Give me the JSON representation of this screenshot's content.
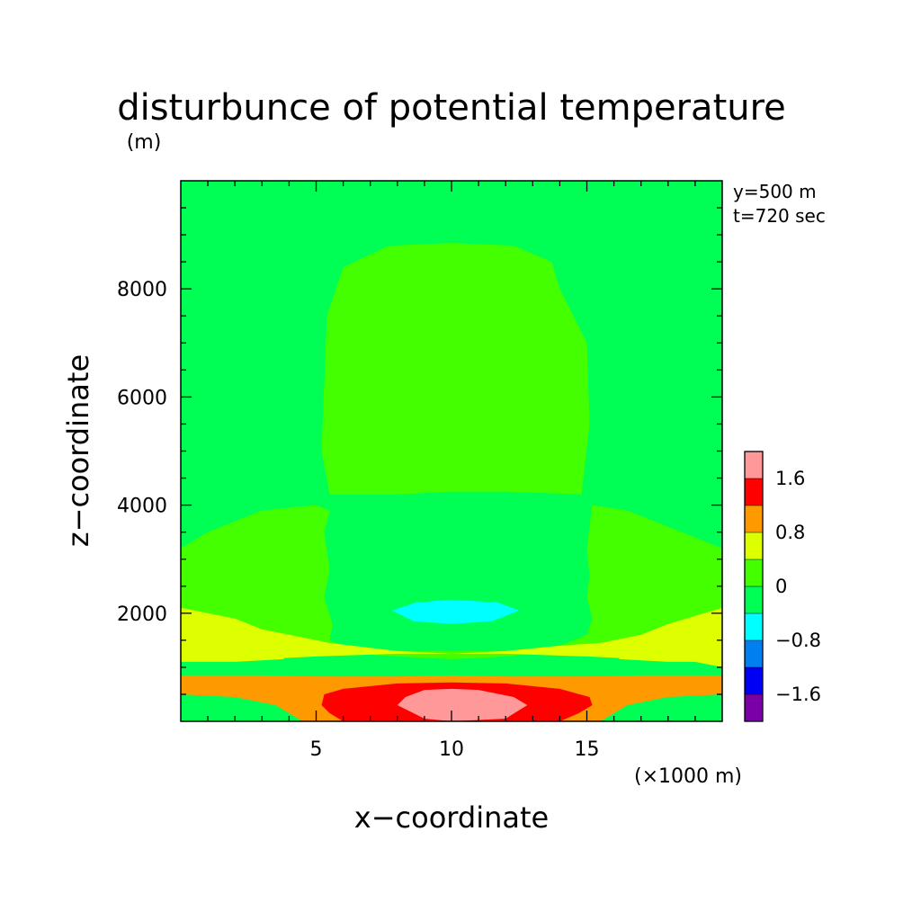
{
  "chart_data": {
    "type": "heatmap",
    "title": "disturbunce of potential temperature",
    "xlabel": "x−coordinate",
    "ylabel": "z−coordinate",
    "x_unit": "(×1000 m)",
    "y_unit": "(m)",
    "annotations": [
      "y=500 m",
      "t=720 sec"
    ],
    "xlim": [
      0,
      20
    ],
    "ylim": [
      0,
      10000
    ],
    "x_ticks": [
      5,
      10,
      15
    ],
    "y_ticks": [
      2000,
      4000,
      6000,
      8000
    ],
    "x_tick_labels": [
      "5",
      "10",
      "15"
    ],
    "y_tick_labels": [
      "2000",
      "4000",
      "6000",
      "8000"
    ],
    "colorbar": {
      "levels": [
        {
          "range": [
            -2.0,
            -1.6
          ],
          "color": "#7b00a8"
        },
        {
          "range": [
            -1.6,
            -1.2
          ],
          "color": "#0000f5"
        },
        {
          "range": [
            -1.2,
            -0.8
          ],
          "color": "#0080f0"
        },
        {
          "range": [
            -0.8,
            -0.4
          ],
          "color": "#00ffff"
        },
        {
          "range": [
            -0.4,
            0.0
          ],
          "color": "#00ff55"
        },
        {
          "range": [
            0.0,
            0.4
          ],
          "color": "#44ff00"
        },
        {
          "range": [
            0.4,
            0.8
          ],
          "color": "#ddff00"
        },
        {
          "range": [
            0.8,
            1.2
          ],
          "color": "#ff9900"
        },
        {
          "range": [
            1.2,
            1.6
          ],
          "color": "#ff0000"
        },
        {
          "range": [
            1.6,
            2.0
          ],
          "color": "#ff9999"
        }
      ],
      "tick_labels": [
        "1.6",
        "0.8",
        "0",
        "−0.8",
        "−1.6"
      ],
      "tick_values": [
        1.6,
        0.8,
        0,
        -0.8,
        -1.6
      ]
    },
    "regions": [
      {
        "level": 0.0,
        "desc": "upper dome",
        "outline": [
          [
            5.5,
            4200
          ],
          [
            5.2,
            5000
          ],
          [
            5.4,
            7500
          ],
          [
            6.0,
            8400
          ],
          [
            7.7,
            8800
          ],
          [
            10.0,
            8850
          ],
          [
            12.3,
            8800
          ],
          [
            13.7,
            8500
          ],
          [
            14.0,
            8000
          ],
          [
            15.0,
            7000
          ],
          [
            15.1,
            5500
          ],
          [
            14.8,
            4200
          ],
          [
            12,
            4250
          ],
          [
            10,
            4250
          ],
          [
            8,
            4200
          ]
        ]
      },
      {
        "level": 0.0,
        "desc": "low layer",
        "outline": [
          [
            0,
            3200
          ],
          [
            1,
            3500
          ],
          [
            3,
            3900
          ],
          [
            5,
            4000
          ],
          [
            5.5,
            3900
          ],
          [
            5.3,
            3500
          ],
          [
            5.5,
            2800
          ],
          [
            5.3,
            2300
          ],
          [
            5.6,
            1800
          ],
          [
            5.5,
            1500
          ],
          [
            6,
            1400
          ],
          [
            8,
            1300
          ],
          [
            10,
            1300
          ],
          [
            12,
            1300
          ],
          [
            14,
            1400
          ],
          [
            15,
            1600
          ],
          [
            15.2,
            1900
          ],
          [
            15,
            2300
          ],
          [
            15.1,
            2700
          ],
          [
            15,
            3200
          ],
          [
            15.2,
            4000
          ],
          [
            16.5,
            3900
          ],
          [
            18,
            3600
          ],
          [
            20,
            3200
          ],
          [
            20,
            2100
          ],
          [
            19,
            1950
          ],
          [
            18,
            1800
          ],
          [
            17,
            1600
          ],
          [
            15.5,
            1400
          ],
          [
            12,
            1200
          ],
          [
            10,
            1150
          ],
          [
            8,
            1200
          ],
          [
            5,
            1300
          ],
          [
            2,
            1500
          ],
          [
            0,
            1600
          ]
        ]
      },
      {
        "level": 0.4,
        "desc": "lower yellow band",
        "outline": [
          [
            0,
            2100
          ],
          [
            1,
            2000
          ],
          [
            2,
            1900
          ],
          [
            3,
            1700
          ],
          [
            4,
            1600
          ],
          [
            5.5,
            1450
          ],
          [
            8,
            1300
          ],
          [
            10,
            1250
          ],
          [
            12,
            1300
          ],
          [
            14,
            1400
          ],
          [
            15.5,
            1450
          ],
          [
            17,
            1600
          ],
          [
            18,
            1800
          ],
          [
            19,
            1950
          ],
          [
            20,
            2100
          ],
          [
            20,
            1000
          ],
          [
            19,
            1100
          ],
          [
            17,
            1150
          ],
          [
            15,
            1200
          ],
          [
            12,
            1250
          ],
          [
            10,
            1250
          ],
          [
            8,
            1250
          ],
          [
            5,
            1200
          ],
          [
            3,
            1150
          ],
          [
            0,
            1100
          ]
        ]
      },
      {
        "level": 0.8,
        "desc": "orange band",
        "outline": [
          [
            0,
            850
          ],
          [
            1.5,
            850
          ],
          [
            3,
            850
          ],
          [
            5,
            830
          ],
          [
            8,
            830
          ],
          [
            10,
            850
          ],
          [
            12,
            830
          ],
          [
            15,
            830
          ],
          [
            17,
            850
          ],
          [
            18.5,
            850
          ],
          [
            20,
            850
          ],
          [
            20,
            500
          ],
          [
            18,
            450
          ],
          [
            16.5,
            300
          ],
          [
            16,
            150
          ],
          [
            15.5,
            0
          ],
          [
            4.5,
            0
          ],
          [
            4,
            150
          ],
          [
            3.5,
            300
          ],
          [
            2,
            450
          ],
          [
            0,
            500
          ]
        ]
      },
      {
        "level": 1.2,
        "desc": "red core",
        "outline": [
          [
            5.3,
            500
          ],
          [
            6,
            600
          ],
          [
            8,
            700
          ],
          [
            10,
            720
          ],
          [
            12,
            700
          ],
          [
            14,
            600
          ],
          [
            15.1,
            450
          ],
          [
            15.2,
            300
          ],
          [
            14.7,
            150
          ],
          [
            14,
            0
          ],
          [
            6,
            0
          ],
          [
            5.5,
            150
          ],
          [
            5.2,
            300
          ]
        ]
      },
      {
        "level": 1.6,
        "desc": "pink peak",
        "outline": [
          [
            8,
            300
          ],
          [
            8.3,
            450
          ],
          [
            9,
            580
          ],
          [
            10,
            600
          ],
          [
            11,
            580
          ],
          [
            12.3,
            450
          ],
          [
            12.8,
            300
          ],
          [
            12,
            50
          ],
          [
            10,
            0
          ],
          [
            9,
            50
          ]
        ]
      },
      {
        "level": -0.8,
        "desc": "cyan cold pocket",
        "outline": [
          [
            7.8,
            2050
          ],
          [
            8.7,
            2200
          ],
          [
            10,
            2250
          ],
          [
            11.7,
            2200
          ],
          [
            12.5,
            2050
          ],
          [
            11.5,
            1850
          ],
          [
            10,
            1800
          ],
          [
            8.6,
            1850
          ]
        ]
      },
      {
        "level": 0.4,
        "desc": "left side tongue",
        "outline": [
          [
            0,
            1200
          ],
          [
            1,
            1250
          ],
          [
            2,
            1300
          ],
          [
            3,
            1250
          ],
          [
            3.8,
            1200
          ],
          [
            3.8,
            1150
          ],
          [
            2,
            1100
          ],
          [
            0,
            1100
          ]
        ]
      },
      {
        "level": 0.4,
        "desc": "right side tongue",
        "outline": [
          [
            20,
            1200
          ],
          [
            19,
            1250
          ],
          [
            18,
            1300
          ],
          [
            17,
            1250
          ],
          [
            16.2,
            1200
          ],
          [
            16.2,
            1150
          ],
          [
            18,
            1100
          ],
          [
            20,
            1100
          ]
        ]
      }
    ]
  }
}
